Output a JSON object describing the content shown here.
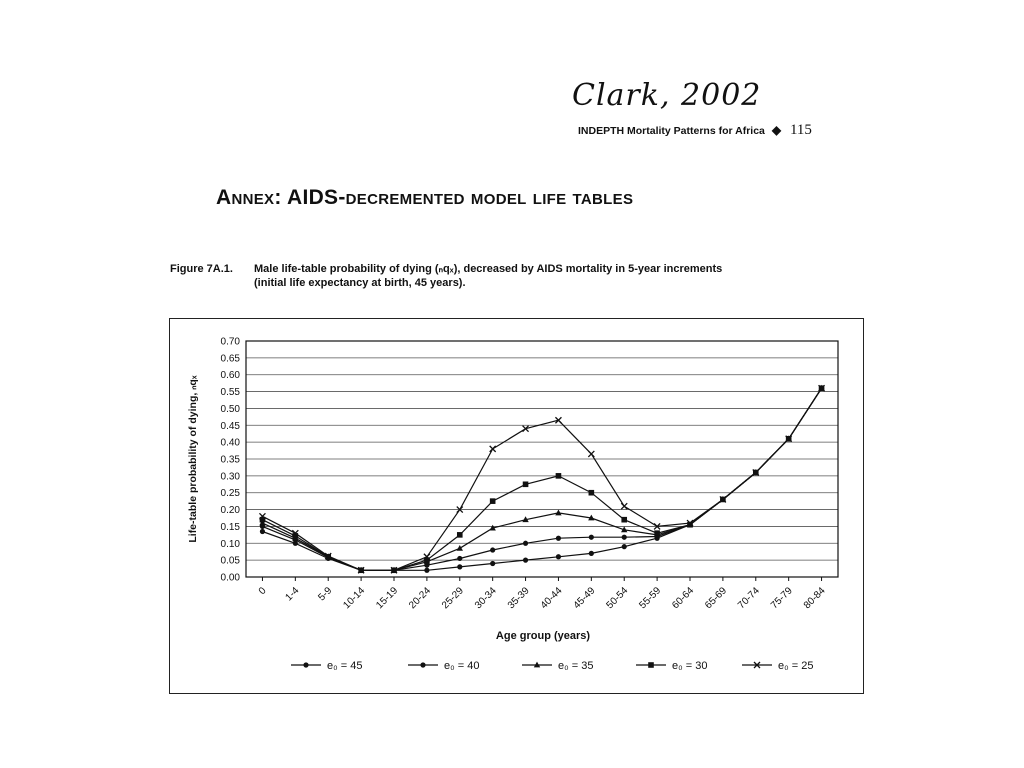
{
  "signature": "Clark, 2002",
  "running_head": {
    "text": "INDEPTH Mortality Patterns for Africa",
    "page_number": "115"
  },
  "annex_title": "Annex: AIDS-decremented model life tables",
  "figure": {
    "label": "Figure 7A.1.",
    "caption_line1": "Male life-table probability of dying (ₙqₓ), decreased by AIDS mortality in 5-year increments",
    "caption_line2": "(initial life expectancy at birth, 45 years)."
  },
  "chart_data": {
    "type": "line",
    "xlabel": "Age group (years)",
    "ylabel": "Life-table probability of dying, ₙqₓ",
    "categories": [
      "0",
      "1-4",
      "5-9",
      "10-14",
      "15-19",
      "20-24",
      "25-29",
      "30-34",
      "35-39",
      "40-44",
      "45-49",
      "50-54",
      "55-59",
      "60-64",
      "65-69",
      "70-74",
      "75-79",
      "80-84"
    ],
    "ylim": [
      0,
      0.7
    ],
    "yticks": [
      "0.00",
      "0.05",
      "0.10",
      "0.15",
      "0.20",
      "0.25",
      "0.30",
      "0.35",
      "0.40",
      "0.45",
      "0.50",
      "0.55",
      "0.60",
      "0.65",
      "0.70"
    ],
    "grid": "horizontal",
    "legend_position": "bottom",
    "series": [
      {
        "name": "e₀ = 45",
        "marker": "circle",
        "values": [
          0.135,
          0.1,
          0.055,
          0.02,
          0.02,
          0.02,
          0.03,
          0.04,
          0.05,
          0.06,
          0.07,
          0.09,
          0.115,
          0.155,
          0.23,
          0.31,
          0.41,
          0.56
        ]
      },
      {
        "name": "e₀ = 40",
        "marker": "circle",
        "values": [
          0.15,
          0.11,
          0.058,
          0.02,
          0.02,
          0.035,
          0.055,
          0.08,
          0.1,
          0.115,
          0.118,
          0.118,
          0.12,
          0.155,
          0.23,
          0.31,
          0.41,
          0.56
        ]
      },
      {
        "name": "e₀ = 35",
        "marker": "triangle",
        "values": [
          0.16,
          0.115,
          0.06,
          0.02,
          0.02,
          0.045,
          0.085,
          0.145,
          0.17,
          0.19,
          0.175,
          0.14,
          0.125,
          0.155,
          0.23,
          0.31,
          0.41,
          0.56
        ]
      },
      {
        "name": "e₀ = 30",
        "marker": "square",
        "values": [
          0.17,
          0.122,
          0.06,
          0.02,
          0.02,
          0.05,
          0.125,
          0.225,
          0.275,
          0.3,
          0.25,
          0.17,
          0.13,
          0.155,
          0.23,
          0.31,
          0.41,
          0.56
        ]
      },
      {
        "name": "e₀ = 25",
        "marker": "x",
        "values": [
          0.18,
          0.13,
          0.062,
          0.02,
          0.02,
          0.06,
          0.2,
          0.38,
          0.44,
          0.465,
          0.365,
          0.21,
          0.15,
          0.16,
          0.23,
          0.31,
          0.41,
          0.56
        ]
      }
    ],
    "colors": {
      "line": "#111111",
      "grid": "#555555",
      "axis": "#111111"
    }
  }
}
